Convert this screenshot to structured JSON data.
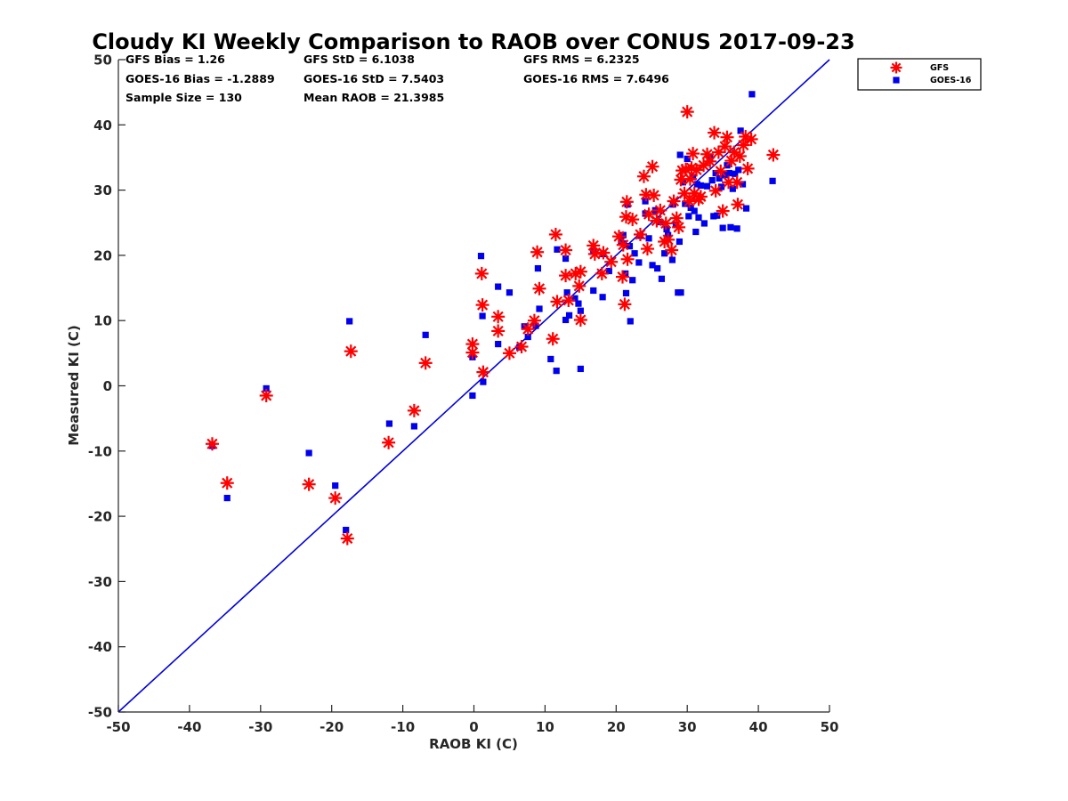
{
  "chart_data": {
    "type": "scatter",
    "title": "Cloudy KI Weekly Comparison to RAOB over CONUS 2017-09-23",
    "xlabel": "RAOB KI (C)",
    "ylabel": "Measured KI (C)",
    "xlim": [
      -50,
      50
    ],
    "ylim": [
      -50,
      50
    ],
    "xticks": [
      "-50",
      "-40",
      "-30",
      "-20",
      "-10",
      "0",
      "10",
      "20",
      "30",
      "40",
      "50"
    ],
    "yticks": [
      "-50",
      "-40",
      "-30",
      "-20",
      "-10",
      "0",
      "10",
      "20",
      "30",
      "40",
      "50"
    ],
    "grid": false,
    "legend_position": "outside top-right",
    "reference_line": {
      "type": "one-to-one",
      "color": "#0000dd"
    },
    "stats": [
      [
        "GFS Bias = 1.26",
        "GFS StD = 6.1038",
        "GFS RMS = 6.2325"
      ],
      [
        "GOES-16 Bias = -1.2889",
        "GOES-16 StD = 7.5403",
        "GOES-16 RMS = 7.6496"
      ],
      [
        "Sample Size = 130",
        "Mean RAOB = 21.3985",
        ""
      ]
    ],
    "series": [
      {
        "name": "GFS",
        "marker": "asterisk",
        "color": "#ff0000",
        "points": [
          [
            -36.8,
            -8.9
          ],
          [
            -34.7,
            -14.9
          ],
          [
            -29.2,
            -1.5
          ],
          [
            -23.2,
            -15.1
          ],
          [
            -19.5,
            -17.2
          ],
          [
            -17.8,
            -23.4
          ],
          [
            -17.3,
            5.3
          ],
          [
            -12.0,
            -8.7
          ],
          [
            -8.4,
            -3.8
          ],
          [
            -6.8,
            3.5
          ],
          [
            -0.2,
            6.4
          ],
          [
            -0.2,
            5.1
          ],
          [
            1.1,
            17.2
          ],
          [
            1.2,
            12.4
          ],
          [
            1.3,
            2.1
          ],
          [
            3.4,
            10.6
          ],
          [
            3.4,
            8.4
          ],
          [
            5.0,
            5.0
          ],
          [
            6.7,
            6.0
          ],
          [
            7.6,
            8.7
          ],
          [
            8.5,
            10.0
          ],
          [
            8.9,
            20.5
          ],
          [
            9.2,
            14.9
          ],
          [
            11.1,
            7.2
          ],
          [
            11.5,
            23.2
          ],
          [
            11.7,
            12.9
          ],
          [
            12.9,
            20.8
          ],
          [
            12.9,
            16.9
          ],
          [
            13.3,
            13.1
          ],
          [
            14.3,
            17.2
          ],
          [
            14.8,
            15.3
          ],
          [
            15.0,
            17.5
          ],
          [
            15.0,
            10.1
          ],
          [
            16.8,
            21.5
          ],
          [
            17.0,
            20.2
          ],
          [
            18.0,
            17.2
          ],
          [
            18.2,
            20.4
          ],
          [
            19.3,
            19.0
          ],
          [
            20.4,
            22.9
          ],
          [
            20.9,
            16.7
          ],
          [
            21.0,
            21.6
          ],
          [
            21.2,
            12.5
          ],
          [
            21.4,
            25.9
          ],
          [
            21.5,
            28.2
          ],
          [
            21.6,
            19.4
          ],
          [
            22.3,
            25.5
          ],
          [
            23.4,
            23.2
          ],
          [
            23.9,
            32.1
          ],
          [
            24.2,
            29.3
          ],
          [
            24.4,
            21.0
          ],
          [
            24.6,
            26.3
          ],
          [
            25.1,
            33.6
          ],
          [
            25.3,
            29.2
          ],
          [
            25.7,
            25.3
          ],
          [
            26.2,
            26.9
          ],
          [
            26.8,
            22.1
          ],
          [
            27.0,
            24.9
          ],
          [
            27.3,
            22.4
          ],
          [
            27.8,
            20.8
          ],
          [
            28.1,
            28.3
          ],
          [
            28.5,
            25.7
          ],
          [
            28.8,
            24.3
          ],
          [
            29.1,
            31.6
          ],
          [
            29.3,
            33.0
          ],
          [
            29.6,
            29.5
          ],
          [
            29.8,
            33.2
          ],
          [
            30.0,
            42.0
          ],
          [
            30.3,
            28.3
          ],
          [
            30.4,
            31.7
          ],
          [
            30.6,
            33.4
          ],
          [
            30.8,
            35.6
          ],
          [
            31.0,
            29.5
          ],
          [
            31.3,
            33.1
          ],
          [
            31.6,
            28.6
          ],
          [
            31.9,
            29.0
          ],
          [
            32.3,
            33.8
          ],
          [
            32.8,
            35.5
          ],
          [
            33.2,
            34.4
          ],
          [
            33.8,
            38.8
          ],
          [
            34.0,
            29.9
          ],
          [
            34.4,
            35.8
          ],
          [
            34.7,
            32.9
          ],
          [
            35.0,
            26.8
          ],
          [
            35.3,
            36.7
          ],
          [
            35.6,
            38.1
          ],
          [
            35.8,
            31.2
          ],
          [
            36.2,
            34.5
          ],
          [
            36.6,
            35.8
          ],
          [
            37.0,
            31.2
          ],
          [
            37.1,
            27.8
          ],
          [
            37.4,
            35.2
          ],
          [
            37.9,
            36.9
          ],
          [
            38.2,
            38.2
          ],
          [
            38.5,
            33.3
          ],
          [
            39.0,
            37.8
          ],
          [
            42.1,
            35.4
          ]
        ]
      },
      {
        "name": "GOES-16",
        "marker": "square",
        "color": "#0000ee",
        "points": [
          [
            -36.8,
            -9.2
          ],
          [
            -34.7,
            -17.2
          ],
          [
            -29.2,
            -0.4
          ],
          [
            -23.2,
            -10.3
          ],
          [
            -19.5,
            -15.3
          ],
          [
            -18.0,
            -22.1
          ],
          [
            -17.5,
            9.9
          ],
          [
            -11.9,
            -5.8
          ],
          [
            -8.4,
            -6.2
          ],
          [
            -6.8,
            7.8
          ],
          [
            -0.2,
            4.4
          ],
          [
            -0.2,
            -1.5
          ],
          [
            1.0,
            19.9
          ],
          [
            1.2,
            10.7
          ],
          [
            1.3,
            0.6
          ],
          [
            3.4,
            15.2
          ],
          [
            3.4,
            6.4
          ],
          [
            5.0,
            14.3
          ],
          [
            6.4,
            5.9
          ],
          [
            7.1,
            9.1
          ],
          [
            7.6,
            7.5
          ],
          [
            8.7,
            9.2
          ],
          [
            9.0,
            18.0
          ],
          [
            9.2,
            11.8
          ],
          [
            10.8,
            4.1
          ],
          [
            11.6,
            2.3
          ],
          [
            11.7,
            20.9
          ],
          [
            12.9,
            19.5
          ],
          [
            12.9,
            10.1
          ],
          [
            13.1,
            14.3
          ],
          [
            13.4,
            10.8
          ],
          [
            14.2,
            13.4
          ],
          [
            14.7,
            12.6
          ],
          [
            15.0,
            11.5
          ],
          [
            15.0,
            2.6
          ],
          [
            16.8,
            20.6
          ],
          [
            16.8,
            14.6
          ],
          [
            18.1,
            13.6
          ],
          [
            18.2,
            20.2
          ],
          [
            19.0,
            17.6
          ],
          [
            20.7,
            22.2
          ],
          [
            21.0,
            23.1
          ],
          [
            21.1,
            21.8
          ],
          [
            21.3,
            17.2
          ],
          [
            21.4,
            14.2
          ],
          [
            21.6,
            27.8
          ],
          [
            21.9,
            21.4
          ],
          [
            22.0,
            9.9
          ],
          [
            22.3,
            16.2
          ],
          [
            22.6,
            20.3
          ],
          [
            23.2,
            18.9
          ],
          [
            23.4,
            23.0
          ],
          [
            24.1,
            28.3
          ],
          [
            24.1,
            26.4
          ],
          [
            24.6,
            22.6
          ],
          [
            25.1,
            18.5
          ],
          [
            25.5,
            26.9
          ],
          [
            25.8,
            18.0
          ],
          [
            26.2,
            25.1
          ],
          [
            26.4,
            16.4
          ],
          [
            26.8,
            20.3
          ],
          [
            27.1,
            24.0
          ],
          [
            27.3,
            23.1
          ],
          [
            27.9,
            19.3
          ],
          [
            28.0,
            27.8
          ],
          [
            28.4,
            24.7
          ],
          [
            28.7,
            14.3
          ],
          [
            28.9,
            22.1
          ],
          [
            29.0,
            35.4
          ],
          [
            29.1,
            14.3
          ],
          [
            29.4,
            31.2
          ],
          [
            29.7,
            27.9
          ],
          [
            30.0,
            34.8
          ],
          [
            30.2,
            26.0
          ],
          [
            30.5,
            27.3
          ],
          [
            30.8,
            32.0
          ],
          [
            31.0,
            26.8
          ],
          [
            31.2,
            23.6
          ],
          [
            31.4,
            30.9
          ],
          [
            31.6,
            25.8
          ],
          [
            31.9,
            30.7
          ],
          [
            32.4,
            24.9
          ],
          [
            32.8,
            30.6
          ],
          [
            33.2,
            34.9
          ],
          [
            33.5,
            31.5
          ],
          [
            33.7,
            26.0
          ],
          [
            34.0,
            32.6
          ],
          [
            34.2,
            26.1
          ],
          [
            34.5,
            31.8
          ],
          [
            34.8,
            30.5
          ],
          [
            35.0,
            24.2
          ],
          [
            35.3,
            32.3
          ],
          [
            35.6,
            33.8
          ],
          [
            35.9,
            32.6
          ],
          [
            36.1,
            24.3
          ],
          [
            36.4,
            30.2
          ],
          [
            36.7,
            32.5
          ],
          [
            37.0,
            24.1
          ],
          [
            37.2,
            33.1
          ],
          [
            37.5,
            39.1
          ],
          [
            37.8,
            30.9
          ],
          [
            38.3,
            27.2
          ],
          [
            39.1,
            44.7
          ],
          [
            42.0,
            31.4
          ]
        ]
      }
    ]
  }
}
